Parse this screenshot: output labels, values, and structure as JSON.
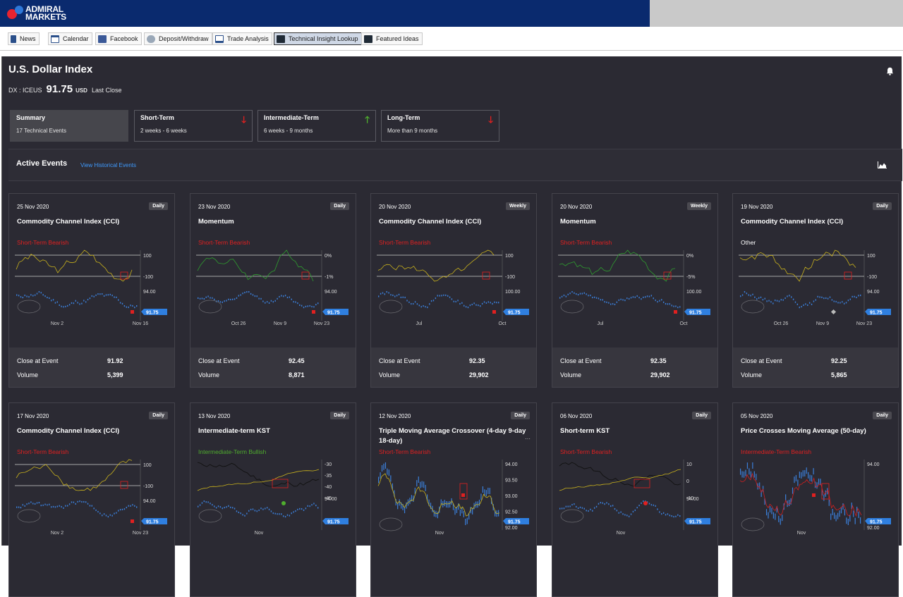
{
  "brand": {
    "line1": "ADMIRAL",
    "line2": "MARKETS"
  },
  "toolbar": [
    {
      "label": "News",
      "icon": "news-icon"
    },
    {
      "label": "Calendar",
      "icon": "calendar-icon"
    },
    {
      "label": "Facebook",
      "icon": "facebook-icon"
    },
    {
      "label": "Deposit/Withdraw",
      "icon": "deposit-icon"
    },
    {
      "label": "Trade Analysis",
      "icon": "chart-icon"
    },
    {
      "label": "Technical Insight Lookup",
      "icon": "checkmark-chart-icon"
    },
    {
      "label": "Featured Ideas",
      "icon": "checkmark-chart-icon"
    }
  ],
  "instrument": {
    "name": "U.S. Dollar Index",
    "symbol": "DX : ICEUS",
    "price": "91.75",
    "currency": "USD",
    "price_label": "Last Close"
  },
  "tabs": [
    {
      "name": "Summary",
      "sub": "17 Technical Events",
      "arrow": ""
    },
    {
      "name": "Short-Term",
      "sub": "2 weeks - 6 weeks",
      "arrow": "down"
    },
    {
      "name": "Intermediate-Term",
      "sub": "6 weeks - 9 months",
      "arrow": "up"
    },
    {
      "name": "Long-Term",
      "sub": "More than 9 months",
      "arrow": "down"
    }
  ],
  "events": {
    "heading": "Active Events",
    "history_link": "View Historical Events"
  },
  "labels": {
    "close": "Close at Event",
    "volume": "Volume"
  },
  "colors": {
    "bearish": "#e02020",
    "bullish": "#4fae2e",
    "other": "#ffffff",
    "price_tag": "#2f7fe0"
  },
  "cards": [
    {
      "date": "25 Nov 2020",
      "freq": "Daily",
      "title": "Commodity Channel Index (CCI)",
      "signal": "Short-Term Bearish",
      "tone": "bearish",
      "ind_top": "100",
      "ind_bot": "-100",
      "price_top": "94.00",
      "last": "91.75",
      "xticks": [
        "Nov 2",
        "Nov 16"
      ],
      "close": "91.92",
      "volume": "5,399"
    },
    {
      "date": "23 Nov 2020",
      "freq": "Daily",
      "title": "Momentum",
      "signal": "Short-Term Bearish",
      "tone": "bearish",
      "ind_top": "0%",
      "ind_bot": "-1%",
      "price_top": "94.00",
      "last": "91.75",
      "xticks": [
        "Oct 26",
        "Nov 9",
        "Nov 23"
      ],
      "close": "92.45",
      "volume": "8,871"
    },
    {
      "date": "20 Nov 2020",
      "freq": "Weekly",
      "title": "Commodity Channel Index (CCI)",
      "signal": "Short-Term Bearish",
      "tone": "bearish",
      "ind_top": "100",
      "ind_bot": "-100",
      "price_top": "100.00",
      "last": "91.75",
      "xticks": [
        "Jul",
        "Oct"
      ],
      "close": "92.35",
      "volume": "29,902"
    },
    {
      "date": "20 Nov 2020",
      "freq": "Weekly",
      "title": "Momentum",
      "signal": "Short-Term Bearish",
      "tone": "bearish",
      "ind_top": "0%",
      "ind_bot": "-5%",
      "price_top": "100.00",
      "last": "91.75",
      "xticks": [
        "Jul",
        "Oct"
      ],
      "close": "92.35",
      "volume": "29,902"
    },
    {
      "date": "19 Nov 2020",
      "freq": "Daily",
      "title": "Commodity Channel Index (CCI)",
      "signal": "Other",
      "tone": "other",
      "ind_top": "100",
      "ind_bot": "-100",
      "price_top": "94.00",
      "last": "91.75",
      "xticks": [
        "Oct 26",
        "Nov 9",
        "Nov 23"
      ],
      "close": "92.25",
      "volume": "5,865"
    },
    {
      "date": "17 Nov 2020",
      "freq": "Daily",
      "title": "Commodity Channel Index (CCI)",
      "signal": "Short-Term Bearish",
      "tone": "bearish",
      "ind_top": "100",
      "ind_bot": "-100",
      "price_top": "94.00",
      "last": "91.75",
      "xticks": [
        "Nov 2",
        "Nov 23"
      ]
    },
    {
      "date": "13 Nov 2020",
      "freq": "Daily",
      "title": "Intermediate-term KST",
      "signal": "Intermediate-Term Bullish",
      "tone": "bullish",
      "ind_ticks": [
        "-30",
        "-35",
        "-40",
        "-45"
      ],
      "price_top": "94.00",
      "last": "91.75",
      "xticks": [
        "Nov"
      ]
    },
    {
      "date": "12 Nov 2020",
      "freq": "Daily",
      "title": "Triple Moving Average Crossover (4-day 9-day 18-day)",
      "signal": "Short-Term Bearish",
      "tone": "bearish",
      "ind_ticks": [
        "94.00",
        "93.50",
        "93.00",
        "92.50",
        "92.00"
      ],
      "last": "91.75",
      "xticks": [
        "Nov"
      ]
    },
    {
      "date": "06 Nov 2020",
      "freq": "Daily",
      "title": "Short-term KST",
      "signal": "Short-Term Bearish",
      "tone": "bearish",
      "ind_ticks": [
        "10",
        "0",
        "-10"
      ],
      "price_top": "94.00",
      "last": "91.75",
      "xticks": [
        "Nov"
      ]
    },
    {
      "date": "05 Nov 2020",
      "freq": "Daily",
      "title": "Price Crosses Moving Average (50-day)",
      "signal": "Intermediate-Term Bearish",
      "tone": "bearish",
      "ind_ticks": [
        "94.00",
        "92.00"
      ],
      "last": "91.75",
      "xticks": [
        "Nov"
      ]
    }
  ]
}
